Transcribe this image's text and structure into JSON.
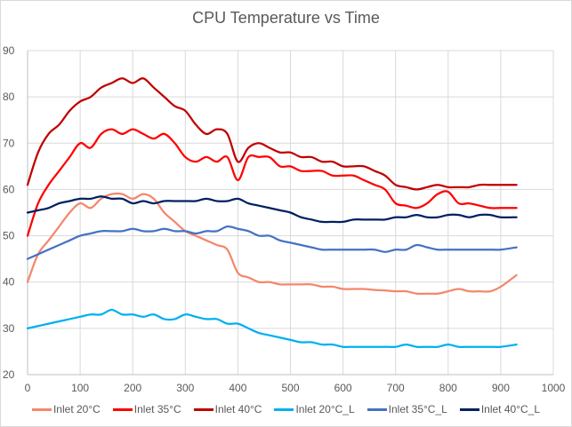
{
  "chart_data": {
    "type": "line",
    "title": "CPU Temperature vs Time",
    "xlabel": "",
    "ylabel": "",
    "xlim": [
      0,
      1000
    ],
    "ylim": [
      20,
      90
    ],
    "xticks": [
      0,
      100,
      200,
      300,
      400,
      500,
      600,
      700,
      800,
      900,
      1000
    ],
    "yticks": [
      20,
      30,
      40,
      50,
      60,
      70,
      80,
      90
    ],
    "grid": true,
    "legend_position": "bottom",
    "x": [
      0,
      20,
      40,
      60,
      80,
      100,
      120,
      140,
      160,
      180,
      200,
      220,
      240,
      260,
      280,
      300,
      320,
      340,
      360,
      380,
      400,
      420,
      440,
      460,
      480,
      500,
      520,
      540,
      560,
      580,
      600,
      620,
      640,
      660,
      680,
      700,
      720,
      740,
      760,
      780,
      800,
      820,
      840,
      860,
      880,
      900,
      930
    ],
    "series": [
      {
        "name": "Inlet 20°C",
        "color": "#F4876B",
        "values": [
          40,
          46,
          49,
          52,
          55,
          57,
          56,
          58,
          59,
          59,
          58,
          59,
          58,
          55,
          53,
          51,
          50,
          49,
          48,
          47,
          42,
          41,
          40,
          40,
          39.5,
          39.5,
          39.5,
          39.5,
          39,
          39,
          38.5,
          38.5,
          38.5,
          38.3,
          38.2,
          38,
          38,
          37.5,
          37.5,
          37.5,
          38,
          38.5,
          38,
          38,
          38,
          39,
          41.5
        ]
      },
      {
        "name": "Inlet 35°C",
        "color": "#FF0000",
        "values": [
          50,
          57,
          61,
          64,
          67,
          70,
          69,
          72,
          73,
          72,
          73,
          72,
          71,
          72,
          70,
          67,
          66,
          67,
          66,
          67,
          62,
          67,
          67,
          67,
          65,
          65,
          64,
          64,
          64,
          63,
          63,
          63,
          62,
          61,
          60,
          57,
          56.5,
          56,
          57,
          59,
          59.5,
          57,
          57,
          56.5,
          56,
          56,
          56
        ]
      },
      {
        "name": "Inlet 40°C",
        "color": "#C00000",
        "values": [
          61,
          68,
          72,
          74,
          77,
          79,
          80,
          82,
          83,
          84,
          83,
          84,
          82,
          80,
          78,
          77,
          74,
          72,
          73,
          72,
          66,
          69,
          70,
          69,
          68,
          68,
          67,
          67,
          66,
          66,
          65,
          65,
          65,
          64,
          63,
          61,
          60.5,
          60,
          60.5,
          61,
          60.5,
          60.5,
          60.5,
          61,
          61,
          61,
          61
        ]
      },
      {
        "name": "Inlet 20°C_L",
        "color": "#00B0F0",
        "values": [
          30,
          30.5,
          31,
          31.5,
          32,
          32.5,
          33,
          33,
          34,
          33,
          33,
          32.5,
          33,
          32,
          32,
          33,
          32.5,
          32,
          32,
          31,
          31,
          30,
          29,
          28.5,
          28,
          27.5,
          27,
          27,
          26.5,
          26.5,
          26,
          26,
          26,
          26,
          26,
          26,
          26.5,
          26,
          26,
          26,
          26.5,
          26,
          26,
          26,
          26,
          26,
          26.5
        ]
      },
      {
        "name": "Inlet 35°C_L",
        "color": "#4472C4",
        "values": [
          45,
          46,
          47,
          48,
          49,
          50,
          50.5,
          51,
          51,
          51,
          51.5,
          51,
          51,
          51.5,
          51,
          51,
          50.5,
          51,
          51,
          52,
          51.5,
          51,
          50,
          50,
          49,
          48.5,
          48,
          47.5,
          47,
          47,
          47,
          47,
          47,
          47,
          46.5,
          47,
          47,
          48,
          47.5,
          47,
          47,
          47,
          47,
          47,
          47,
          47,
          47.5
        ]
      },
      {
        "name": "Inlet 40°C_L",
        "color": "#002060",
        "values": [
          55,
          55.5,
          56,
          57,
          57.5,
          58,
          58,
          58.5,
          58,
          58,
          57,
          57.5,
          57,
          57.5,
          57.5,
          57.5,
          57.5,
          58,
          57.5,
          57.5,
          58,
          57,
          56.5,
          56,
          55.5,
          55,
          54,
          53.5,
          53,
          53,
          53,
          53.5,
          53.5,
          53.5,
          53.5,
          54,
          54,
          54.5,
          54,
          54,
          54.5,
          54.5,
          54,
          54.5,
          54.5,
          54,
          54
        ]
      }
    ]
  }
}
